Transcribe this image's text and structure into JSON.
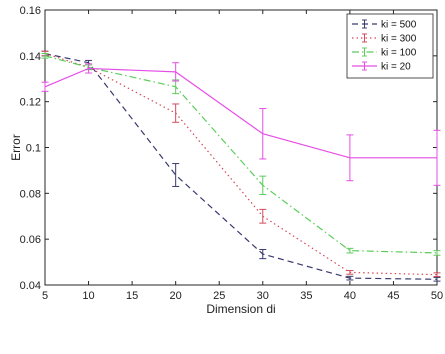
{
  "chart_data": {
    "type": "line",
    "xlabel": "Dimension di",
    "ylabel": "Error",
    "x": [
      5,
      10,
      20,
      30,
      40,
      50
    ],
    "xlim": [
      5,
      50
    ],
    "ylim": [
      0.04,
      0.16
    ],
    "xticks": [
      5,
      10,
      15,
      20,
      25,
      30,
      35,
      40,
      45,
      50
    ],
    "xtick_labels": [
      "5",
      "10",
      "15",
      "20",
      "25",
      "30",
      "35",
      "40",
      "45",
      "50"
    ],
    "yticks": [
      0.04,
      0.06,
      0.08,
      0.1,
      0.12,
      0.14,
      0.16
    ],
    "ytick_labels": [
      "0.04",
      "0.06",
      "0.08",
      "0.1",
      "0.12",
      "0.14",
      "0.16"
    ],
    "legend_position": "top-right",
    "grid": false,
    "series": [
      {
        "name": "ki = 500",
        "color": "#3a3a6e",
        "dash": "dashed",
        "values": [
          0.141,
          0.137,
          0.088,
          0.0535,
          0.043,
          0.0425
        ],
        "err": [
          0.001,
          0.001,
          0.005,
          0.002,
          0.0008,
          0.0008
        ]
      },
      {
        "name": "ki = 300",
        "color": "#d24b5a",
        "dash": "dotted",
        "values": [
          0.141,
          0.135,
          0.115,
          0.07,
          0.0455,
          0.0445
        ],
        "err": [
          0.001,
          0.001,
          0.004,
          0.003,
          0.0008,
          0.0008
        ]
      },
      {
        "name": "ki = 100",
        "color": "#5ccc5c",
        "dash": "dashdot",
        "values": [
          0.14,
          0.135,
          0.1265,
          0.0835,
          0.055,
          0.054
        ],
        "err": [
          0.001,
          0.001,
          0.003,
          0.004,
          0.001,
          0.001
        ]
      },
      {
        "name": "ki = 20",
        "color": "#e64fe6",
        "dash": "solid",
        "values": [
          0.1265,
          0.1345,
          0.133,
          0.106,
          0.0955,
          0.0955
        ],
        "err": [
          0.002,
          0.002,
          0.004,
          0.011,
          0.01,
          0.012
        ]
      }
    ]
  }
}
